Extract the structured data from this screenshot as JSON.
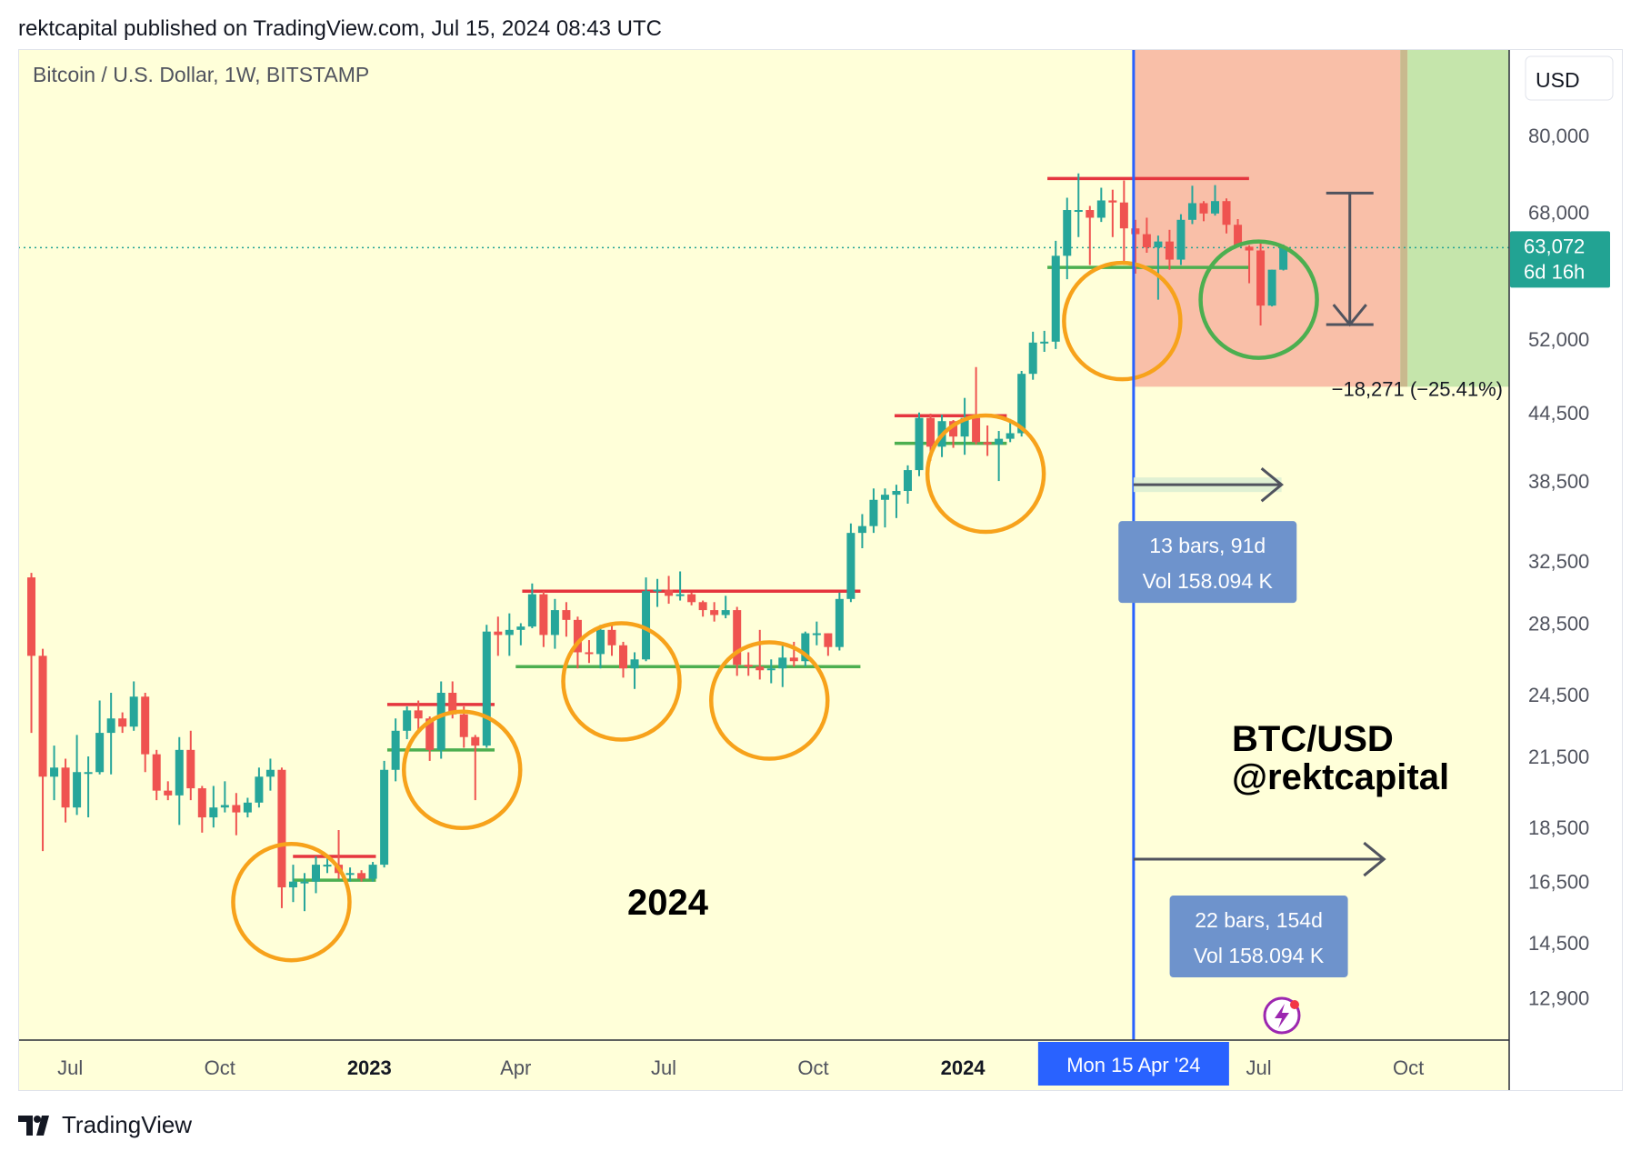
{
  "header": {
    "published": "rektcapital published on TradingView.com, Jul 15, 2024 08:43 UTC"
  },
  "footer": {
    "brand": "TradingView",
    "logo_icon": "tradingview-logo-icon"
  },
  "colors": {
    "background": "#FFFFD9",
    "up_candle": "#26A69A",
    "down_candle": "#EF5350",
    "resistance": "#E5363F",
    "support": "#4CAF50",
    "circle_orange": "#F7A21B",
    "circle_green": "#4CAF50",
    "vline": "#2962FF",
    "stop_zone": "#F9BFA8",
    "target_zone": "#C5E5AB",
    "label_box": "#6E93CC",
    "price_tag": "#22A393"
  },
  "chart_data": {
    "type": "candlestick",
    "title": "Bitcoin / U.S. Dollar, 1W, BITSTAMP",
    "currency_button": "USD",
    "y_scale": "log",
    "ylim": [
      11800,
      96000
    ],
    "x_date_range": [
      "2022-05-30",
      "2024-12-02"
    ],
    "y_ticks": [
      "80,000",
      "68,000",
      "52,000",
      "44,500",
      "38,500",
      "32,500",
      "28,500",
      "24,500",
      "21,500",
      "18,500",
      "16,500",
      "14,500",
      "12,900"
    ],
    "x_ticks": [
      {
        "date": "2022-07-01",
        "label": "Jul",
        "bold": false
      },
      {
        "date": "2022-10-01",
        "label": "Oct",
        "bold": false
      },
      {
        "date": "2023-01-01",
        "label": "2023",
        "bold": true
      },
      {
        "date": "2023-04-01",
        "label": "Apr",
        "bold": false
      },
      {
        "date": "2023-07-01",
        "label": "Jul",
        "bold": false
      },
      {
        "date": "2023-10-01",
        "label": "Oct",
        "bold": false
      },
      {
        "date": "2024-01-01",
        "label": "2024",
        "bold": true
      },
      {
        "date": "2024-07-01",
        "label": "Jul",
        "bold": false
      },
      {
        "date": "2024-10-01",
        "label": "Oct",
        "bold": false
      }
    ],
    "last_price": {
      "value": 63072,
      "label": "63,072",
      "countdown": "6d 16h"
    },
    "candles": [
      {
        "date": "2022-06-06",
        "o": 31400,
        "h": 31700,
        "l": 22600,
        "c": 26600
      },
      {
        "date": "2022-06-13",
        "o": 26600,
        "h": 27000,
        "l": 17600,
        "c": 20600
      },
      {
        "date": "2022-06-20",
        "o": 20600,
        "h": 22000,
        "l": 19600,
        "c": 21000
      },
      {
        "date": "2022-06-27",
        "o": 21000,
        "h": 21400,
        "l": 18700,
        "c": 19300
      },
      {
        "date": "2022-07-04",
        "o": 19300,
        "h": 22500,
        "l": 19000,
        "c": 20800
      },
      {
        "date": "2022-07-11",
        "o": 20800,
        "h": 21500,
        "l": 18900,
        "c": 20800
      },
      {
        "date": "2022-07-18",
        "o": 20800,
        "h": 24200,
        "l": 20700,
        "c": 22600
      },
      {
        "date": "2022-07-25",
        "o": 22600,
        "h": 24600,
        "l": 20700,
        "c": 23300
      },
      {
        "date": "2022-08-01",
        "o": 23300,
        "h": 23600,
        "l": 22600,
        "c": 22900
      },
      {
        "date": "2022-08-08",
        "o": 22900,
        "h": 25200,
        "l": 22700,
        "c": 24400
      },
      {
        "date": "2022-08-15",
        "o": 24400,
        "h": 24600,
        "l": 20800,
        "c": 21600
      },
      {
        "date": "2022-08-22",
        "o": 21600,
        "h": 21800,
        "l": 19600,
        "c": 20000
      },
      {
        "date": "2022-08-29",
        "o": 20000,
        "h": 20400,
        "l": 19600,
        "c": 19800
      },
      {
        "date": "2022-09-05",
        "o": 19800,
        "h": 22400,
        "l": 18600,
        "c": 21800
      },
      {
        "date": "2022-09-12",
        "o": 21800,
        "h": 22700,
        "l": 19600,
        "c": 20100
      },
      {
        "date": "2022-09-19",
        "o": 20100,
        "h": 20200,
        "l": 18300,
        "c": 18900
      },
      {
        "date": "2022-09-26",
        "o": 18900,
        "h": 20200,
        "l": 18500,
        "c": 19300
      },
      {
        "date": "2022-10-03",
        "o": 19300,
        "h": 20400,
        "l": 19100,
        "c": 19400
      },
      {
        "date": "2022-10-10",
        "o": 19400,
        "h": 19900,
        "l": 18200,
        "c": 19100
      },
      {
        "date": "2022-10-17",
        "o": 19100,
        "h": 19700,
        "l": 18900,
        "c": 19500
      },
      {
        "date": "2022-10-24",
        "o": 19500,
        "h": 21000,
        "l": 19300,
        "c": 20600
      },
      {
        "date": "2022-10-31",
        "o": 20600,
        "h": 21400,
        "l": 20000,
        "c": 20900
      },
      {
        "date": "2022-11-07",
        "o": 20900,
        "h": 21000,
        "l": 15600,
        "c": 16300
      },
      {
        "date": "2022-11-14",
        "o": 16300,
        "h": 17100,
        "l": 15800,
        "c": 16500
      },
      {
        "date": "2022-11-21",
        "o": 16500,
        "h": 16800,
        "l": 15500,
        "c": 16500
      },
      {
        "date": "2022-11-28",
        "o": 16500,
        "h": 17400,
        "l": 16100,
        "c": 17100
      },
      {
        "date": "2022-12-05",
        "o": 17100,
        "h": 17400,
        "l": 16800,
        "c": 17100
      },
      {
        "date": "2022-12-12",
        "o": 17100,
        "h": 18400,
        "l": 16600,
        "c": 16800
      },
      {
        "date": "2022-12-19",
        "o": 16800,
        "h": 17000,
        "l": 16500,
        "c": 16800
      },
      {
        "date": "2022-12-26",
        "o": 16800,
        "h": 16900,
        "l": 16500,
        "c": 16600
      },
      {
        "date": "2023-01-02",
        "o": 16600,
        "h": 17200,
        "l": 16500,
        "c": 17100
      },
      {
        "date": "2023-01-09",
        "o": 17100,
        "h": 21300,
        "l": 17000,
        "c": 20900
      },
      {
        "date": "2023-01-16",
        "o": 20900,
        "h": 23300,
        "l": 20400,
        "c": 22700
      },
      {
        "date": "2023-01-23",
        "o": 22700,
        "h": 23900,
        "l": 22300,
        "c": 23700
      },
      {
        "date": "2023-01-30",
        "o": 23700,
        "h": 24200,
        "l": 22600,
        "c": 23300
      },
      {
        "date": "2023-02-06",
        "o": 23300,
        "h": 23400,
        "l": 21300,
        "c": 21800
      },
      {
        "date": "2023-02-13",
        "o": 21800,
        "h": 25200,
        "l": 21400,
        "c": 24600
      },
      {
        "date": "2023-02-20",
        "o": 24600,
        "h": 25200,
        "l": 23300,
        "c": 23500
      },
      {
        "date": "2023-02-27",
        "o": 23500,
        "h": 23900,
        "l": 21900,
        "c": 22400
      },
      {
        "date": "2023-03-06",
        "o": 22400,
        "h": 22500,
        "l": 19600,
        "c": 22000
      },
      {
        "date": "2023-03-13",
        "o": 22000,
        "h": 28400,
        "l": 21900,
        "c": 28000
      },
      {
        "date": "2023-03-20",
        "o": 28000,
        "h": 28900,
        "l": 26600,
        "c": 27800
      },
      {
        "date": "2023-03-27",
        "o": 27800,
        "h": 29100,
        "l": 26600,
        "c": 28100
      },
      {
        "date": "2023-04-03",
        "o": 28100,
        "h": 28500,
        "l": 27200,
        "c": 28300
      },
      {
        "date": "2023-04-10",
        "o": 28300,
        "h": 31000,
        "l": 28200,
        "c": 30300
      },
      {
        "date": "2023-04-17",
        "o": 30300,
        "h": 30500,
        "l": 27100,
        "c": 27800
      },
      {
        "date": "2023-04-24",
        "o": 27800,
        "h": 30000,
        "l": 27000,
        "c": 29300
      },
      {
        "date": "2023-05-01",
        "o": 29300,
        "h": 29800,
        "l": 27700,
        "c": 28700
      },
      {
        "date": "2023-05-08",
        "o": 28700,
        "h": 28900,
        "l": 25900,
        "c": 26800
      },
      {
        "date": "2023-05-15",
        "o": 26800,
        "h": 27500,
        "l": 26200,
        "c": 26700
      },
      {
        "date": "2023-05-22",
        "o": 26700,
        "h": 28400,
        "l": 25900,
        "c": 28100
      },
      {
        "date": "2023-05-29",
        "o": 28100,
        "h": 28400,
        "l": 26600,
        "c": 27200
      },
      {
        "date": "2023-06-05",
        "o": 27200,
        "h": 27400,
        "l": 25400,
        "c": 25900
      },
      {
        "date": "2023-06-12",
        "o": 25900,
        "h": 26800,
        "l": 24800,
        "c": 26400
      },
      {
        "date": "2023-06-19",
        "o": 26400,
        "h": 31400,
        "l": 26300,
        "c": 30500
      },
      {
        "date": "2023-06-26",
        "o": 30500,
        "h": 31300,
        "l": 29500,
        "c": 30600
      },
      {
        "date": "2023-07-03",
        "o": 30600,
        "h": 31500,
        "l": 29700,
        "c": 30200
      },
      {
        "date": "2023-07-10",
        "o": 30200,
        "h": 31800,
        "l": 29900,
        "c": 30300
      },
      {
        "date": "2023-07-17",
        "o": 30300,
        "h": 30400,
        "l": 29600,
        "c": 29800
      },
      {
        "date": "2023-07-24",
        "o": 29800,
        "h": 29900,
        "l": 28900,
        "c": 29300
      },
      {
        "date": "2023-07-31",
        "o": 29300,
        "h": 29800,
        "l": 28600,
        "c": 29000
      },
      {
        "date": "2023-08-07",
        "o": 29000,
        "h": 30200,
        "l": 28800,
        "c": 29300
      },
      {
        "date": "2023-08-14",
        "o": 29300,
        "h": 29500,
        "l": 25500,
        "c": 26100
      },
      {
        "date": "2023-08-21",
        "o": 26100,
        "h": 26800,
        "l": 25500,
        "c": 26000
      },
      {
        "date": "2023-08-28",
        "o": 26000,
        "h": 28100,
        "l": 25300,
        "c": 25800
      },
      {
        "date": "2023-09-04",
        "o": 25800,
        "h": 26400,
        "l": 25100,
        "c": 25900
      },
      {
        "date": "2023-09-11",
        "o": 25900,
        "h": 27400,
        "l": 24900,
        "c": 26500
      },
      {
        "date": "2023-09-18",
        "o": 26500,
        "h": 27400,
        "l": 26000,
        "c": 26300
      },
      {
        "date": "2023-09-25",
        "o": 26300,
        "h": 28000,
        "l": 26000,
        "c": 27900
      },
      {
        "date": "2023-10-02",
        "o": 27900,
        "h": 28600,
        "l": 27200,
        "c": 27900
      },
      {
        "date": "2023-10-09",
        "o": 27900,
        "h": 27900,
        "l": 26600,
        "c": 27100
      },
      {
        "date": "2023-10-16",
        "o": 27100,
        "h": 30400,
        "l": 26900,
        "c": 30000
      },
      {
        "date": "2023-10-23",
        "o": 30000,
        "h": 35200,
        "l": 29800,
        "c": 34500
      },
      {
        "date": "2023-10-30",
        "o": 34500,
        "h": 35900,
        "l": 33400,
        "c": 35000
      },
      {
        "date": "2023-11-06",
        "o": 35000,
        "h": 37900,
        "l": 34500,
        "c": 37000
      },
      {
        "date": "2023-11-13",
        "o": 37000,
        "h": 37900,
        "l": 34900,
        "c": 37400
      },
      {
        "date": "2023-11-20",
        "o": 37400,
        "h": 38200,
        "l": 35600,
        "c": 37700
      },
      {
        "date": "2023-11-27",
        "o": 37700,
        "h": 39800,
        "l": 36700,
        "c": 39400
      },
      {
        "date": "2023-12-04",
        "o": 39400,
        "h": 44500,
        "l": 38900,
        "c": 44000
      },
      {
        "date": "2023-12-11",
        "o": 44000,
        "h": 44400,
        "l": 40200,
        "c": 41400
      },
      {
        "date": "2023-12-18",
        "o": 41400,
        "h": 44300,
        "l": 40500,
        "c": 43700
      },
      {
        "date": "2023-12-25",
        "o": 43700,
        "h": 43800,
        "l": 41300,
        "c": 42300
      },
      {
        "date": "2024-01-01",
        "o": 42300,
        "h": 45900,
        "l": 40700,
        "c": 44000
      },
      {
        "date": "2024-01-08",
        "o": 44000,
        "h": 49000,
        "l": 41600,
        "c": 41800
      },
      {
        "date": "2024-01-15",
        "o": 41800,
        "h": 43300,
        "l": 40600,
        "c": 41600
      },
      {
        "date": "2024-01-22",
        "o": 41600,
        "h": 42800,
        "l": 38500,
        "c": 42100
      },
      {
        "date": "2024-01-29",
        "o": 42100,
        "h": 43900,
        "l": 41800,
        "c": 42600
      },
      {
        "date": "2024-02-05",
        "o": 42600,
        "h": 48600,
        "l": 42300,
        "c": 48300
      },
      {
        "date": "2024-02-12",
        "o": 48300,
        "h": 52800,
        "l": 47700,
        "c": 51600
      },
      {
        "date": "2024-02-19",
        "o": 51600,
        "h": 52900,
        "l": 50600,
        "c": 51700
      },
      {
        "date": "2024-02-26",
        "o": 51700,
        "h": 64000,
        "l": 50900,
        "c": 62000
      },
      {
        "date": "2024-03-04",
        "o": 62000,
        "h": 70100,
        "l": 59000,
        "c": 68300
      },
      {
        "date": "2024-03-11",
        "o": 68300,
        "h": 73800,
        "l": 64500,
        "c": 68300
      },
      {
        "date": "2024-03-18",
        "o": 68300,
        "h": 68900,
        "l": 60800,
        "c": 67200
      },
      {
        "date": "2024-03-25",
        "o": 67200,
        "h": 71600,
        "l": 66600,
        "c": 69700
      },
      {
        "date": "2024-04-01",
        "o": 69700,
        "h": 71300,
        "l": 64500,
        "c": 69400
      },
      {
        "date": "2024-04-08",
        "o": 69400,
        "h": 72700,
        "l": 60800,
        "c": 65700
      },
      {
        "date": "2024-04-15",
        "o": 65700,
        "h": 66900,
        "l": 59700,
        "c": 64900
      },
      {
        "date": "2024-04-22",
        "o": 64900,
        "h": 67200,
        "l": 62400,
        "c": 63100
      },
      {
        "date": "2024-04-29",
        "o": 63100,
        "h": 64700,
        "l": 56500,
        "c": 63900
      },
      {
        "date": "2024-05-06",
        "o": 63900,
        "h": 65500,
        "l": 60200,
        "c": 61500
      },
      {
        "date": "2024-05-13",
        "o": 61500,
        "h": 67700,
        "l": 60800,
        "c": 66900
      },
      {
        "date": "2024-05-20",
        "o": 66900,
        "h": 71900,
        "l": 66300,
        "c": 69300
      },
      {
        "date": "2024-05-27",
        "o": 69300,
        "h": 69600,
        "l": 66700,
        "c": 67800
      },
      {
        "date": "2024-06-03",
        "o": 67800,
        "h": 72000,
        "l": 67500,
        "c": 69600
      },
      {
        "date": "2024-06-10",
        "o": 69600,
        "h": 70000,
        "l": 65000,
        "c": 66200
      },
      {
        "date": "2024-06-17",
        "o": 66200,
        "h": 67000,
        "l": 63400,
        "c": 63200
      },
      {
        "date": "2024-06-24",
        "o": 63200,
        "h": 63400,
        "l": 58500,
        "c": 62700
      },
      {
        "date": "2024-07-01",
        "o": 62700,
        "h": 63800,
        "l": 53500,
        "c": 55800
      },
      {
        "date": "2024-07-08",
        "o": 55800,
        "h": 60200,
        "l": 55700,
        "c": 60200
      },
      {
        "date": "2024-07-15",
        "o": 60200,
        "h": 63500,
        "l": 60100,
        "c": 63072
      }
    ],
    "resistance_lines": [
      {
        "start": "2022-11-15",
        "end": "2023-01-05",
        "price": 17400
      },
      {
        "start": "2023-01-12",
        "end": "2023-03-19",
        "price": 24000
      },
      {
        "start": "2023-04-05",
        "end": "2023-10-30",
        "price": 30500
      },
      {
        "start": "2023-11-20",
        "end": "2024-01-28",
        "price": 44200
      },
      {
        "start": "2024-02-22",
        "end": "2024-06-25",
        "price": 73000
      }
    ],
    "support_lines": [
      {
        "start": "2022-11-15",
        "end": "2023-01-05",
        "price": 16550
      },
      {
        "start": "2023-01-12",
        "end": "2023-03-19",
        "price": 21800
      },
      {
        "start": "2023-04-01",
        "end": "2023-10-30",
        "price": 26000
      },
      {
        "start": "2023-11-20",
        "end": "2024-01-28",
        "price": 41700
      },
      {
        "start": "2024-02-22",
        "end": "2024-06-25",
        "price": 60500
      }
    ],
    "highlight_circles": [
      {
        "date": "2022-11-14",
        "price": 15800,
        "color": "orange"
      },
      {
        "date": "2023-02-27",
        "price": 20900,
        "color": "orange"
      },
      {
        "date": "2023-06-05",
        "price": 25200,
        "color": "orange"
      },
      {
        "date": "2023-09-04",
        "price": 24200,
        "color": "orange"
      },
      {
        "date": "2024-01-15",
        "price": 39100,
        "color": "orange"
      },
      {
        "date": "2024-04-08",
        "price": 54000,
        "color": "orange"
      },
      {
        "date": "2024-07-01",
        "price": 56500,
        "color": "green"
      }
    ],
    "risk_reward": {
      "start": "2024-04-15",
      "split": "2024-09-26",
      "end": "2024-12-02",
      "entry": 73000,
      "stop": 47000,
      "label": "−18,271 (−25.41%)"
    },
    "vertical_line": {
      "date": "2024-04-15",
      "label": "Mon 15 Apr '24"
    },
    "range_annotations": [
      {
        "start": "2024-04-15",
        "end": "2024-07-15",
        "price": 38200,
        "label_line1": "13 bars, 91d",
        "label_line2": "Vol 158.094 K"
      },
      {
        "start": "2024-04-15",
        "end": "2024-09-16",
        "price": 17300,
        "label_line1": "22 bars, 154d",
        "label_line2": "Vol 158.094 K"
      }
    ],
    "target_arrow": {
      "date": "2024-08-26",
      "from": 70800,
      "to": 53600
    },
    "annotations": {
      "year_text": "2024",
      "brand_line1": "BTC/USD",
      "brand_line2": "@rektcapital"
    }
  }
}
